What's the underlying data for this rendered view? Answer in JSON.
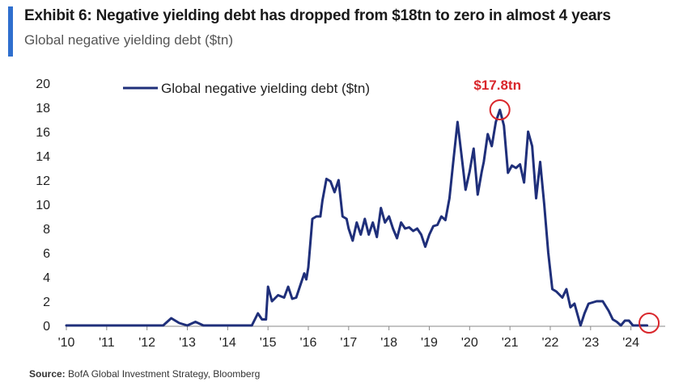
{
  "header": {
    "title": "Exhibit 6: Negative yielding debt has dropped from $18tn to zero in almost 4 years",
    "subtitle": "Global negative yielding debt ($tn)"
  },
  "footer": {
    "source_label": "Source:",
    "source_text": "BofA Global Investment Strategy, Bloomberg"
  },
  "colors": {
    "line": "#1f2f7a",
    "annotation": "#d9262b",
    "accent": "#2f6fce",
    "axis": "#8a8a8a"
  },
  "chart_data": {
    "type": "line",
    "title": "Global negative yielding debt ($tn)",
    "xlabel": "",
    "ylabel": "",
    "xlim": [
      2010,
      2024.85
    ],
    "ylim": [
      0,
      20
    ],
    "x_ticks": [
      2010,
      2011,
      2012,
      2013,
      2014,
      2015,
      2016,
      2017,
      2018,
      2019,
      2020,
      2021,
      2022,
      2023,
      2024
    ],
    "x_tick_labels": [
      "'10",
      "'11",
      "'12",
      "'13",
      "'14",
      "'15",
      "'16",
      "'17",
      "'18",
      "'19",
      "'20",
      "'21",
      "'22",
      "'23",
      "'24"
    ],
    "y_ticks": [
      0,
      2,
      4,
      6,
      8,
      10,
      12,
      14,
      16,
      18,
      20
    ],
    "legend": {
      "label": "Global negative yielding debt ($tn)",
      "position": "top-left"
    },
    "series": [
      {
        "name": "Global negative yielding debt ($tn)",
        "x": [
          2010.0,
          2011.0,
          2011.9,
          2012.4,
          2012.6,
          2012.8,
          2013.0,
          2013.2,
          2013.4,
          2013.8,
          2014.3,
          2014.6,
          2014.75,
          2014.85,
          2014.95,
          2015.0,
          2015.1,
          2015.25,
          2015.4,
          2015.5,
          2015.6,
          2015.7,
          2015.9,
          2015.95,
          2016.0,
          2016.1,
          2016.2,
          2016.3,
          2016.35,
          2016.45,
          2016.55,
          2016.65,
          2016.75,
          2016.85,
          2016.95,
          2017.0,
          2017.1,
          2017.2,
          2017.3,
          2017.4,
          2017.5,
          2017.6,
          2017.7,
          2017.8,
          2017.9,
          2018.0,
          2018.1,
          2018.2,
          2018.3,
          2018.4,
          2018.5,
          2018.6,
          2018.7,
          2018.8,
          2018.9,
          2019.0,
          2019.1,
          2019.2,
          2019.3,
          2019.4,
          2019.5,
          2019.6,
          2019.7,
          2019.8,
          2019.9,
          2020.0,
          2020.1,
          2020.2,
          2020.3,
          2020.35,
          2020.45,
          2020.55,
          2020.65,
          2020.75,
          2020.85,
          2020.95,
          2021.05,
          2021.15,
          2021.25,
          2021.35,
          2021.45,
          2021.55,
          2021.65,
          2021.75,
          2021.85,
          2021.95,
          2022.05,
          2022.15,
          2022.3,
          2022.4,
          2022.5,
          2022.6,
          2022.75,
          2022.85,
          2022.95,
          2023.05,
          2023.15,
          2023.3,
          2023.45,
          2023.55,
          2023.65,
          2023.75,
          2023.85,
          2023.95,
          2024.05,
          2024.2,
          2024.4
        ],
        "values": [
          0.0,
          0.0,
          0.0,
          0.0,
          0.6,
          0.2,
          0.0,
          0.3,
          0.0,
          0.0,
          0.0,
          0.0,
          1.0,
          0.5,
          0.5,
          3.2,
          2.0,
          2.5,
          2.3,
          3.2,
          2.2,
          2.3,
          4.3,
          3.8,
          4.8,
          8.8,
          9.0,
          9.0,
          10.3,
          12.1,
          11.9,
          11.0,
          12.0,
          9.0,
          8.8,
          8.0,
          7.0,
          8.5,
          7.5,
          8.8,
          7.5,
          8.5,
          7.3,
          9.7,
          8.5,
          9.0,
          8.0,
          7.2,
          8.5,
          8.0,
          8.1,
          7.8,
          8.0,
          7.5,
          6.5,
          7.5,
          8.2,
          8.3,
          9.0,
          8.7,
          10.5,
          13.7,
          16.8,
          14.0,
          11.2,
          12.7,
          14.6,
          10.8,
          12.7,
          13.5,
          15.8,
          14.8,
          16.8,
          17.8,
          16.5,
          12.6,
          13.2,
          13.0,
          13.3,
          11.8,
          16.0,
          14.8,
          10.5,
          13.5,
          10.0,
          6.0,
          3.0,
          2.8,
          2.3,
          3.0,
          1.5,
          1.8,
          0.0,
          1.0,
          1.8,
          1.9,
          2.0,
          2.0,
          1.2,
          0.5,
          0.3,
          0.0,
          0.4,
          0.4,
          0.0,
          0.0,
          0.0
        ]
      }
    ],
    "annotations": [
      {
        "text": "$17.8tn",
        "x": 2020.75,
        "y": 17.8,
        "marker": "circle"
      },
      {
        "text": "",
        "x": 2024.45,
        "y": 0.2,
        "marker": "circle"
      }
    ]
  }
}
